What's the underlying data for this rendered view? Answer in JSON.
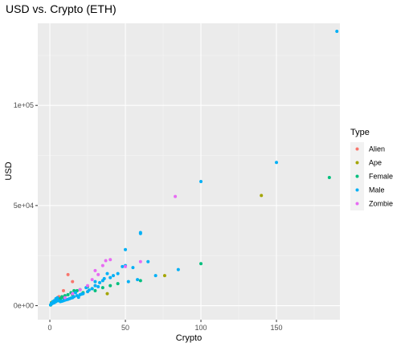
{
  "chart_data": {
    "type": "scatter",
    "title": "USD vs. Crypto (ETH)",
    "xlabel": "Crypto",
    "ylabel": "USD",
    "xlim": [
      -8,
      192
    ],
    "ylim": [
      -7000,
      141000
    ],
    "x_ticks": [
      0,
      50,
      100,
      150
    ],
    "x_tick_labels": [
      "0",
      "50",
      "100",
      "150"
    ],
    "y_ticks": [
      0,
      50000,
      100000
    ],
    "y_tick_labels": [
      "0e+00",
      "5e+04",
      "1e+05"
    ],
    "grid": true,
    "legend": {
      "title": "Type",
      "position": "right"
    },
    "series": [
      {
        "name": "Alien",
        "color": "#F8766D",
        "points": [
          [
            12,
            15500
          ],
          [
            6,
            4500
          ],
          [
            9,
            7500
          ],
          [
            2,
            1500
          ],
          [
            1,
            1000
          ],
          [
            15,
            12000
          ]
        ]
      },
      {
        "name": "Ape",
        "color": "#A3A500",
        "points": [
          [
            140,
            55000
          ],
          [
            76,
            15000
          ],
          [
            38,
            6000
          ],
          [
            1,
            1500
          ],
          [
            2,
            2000
          ],
          [
            3,
            2500
          ],
          [
            6,
            3500
          ]
        ]
      },
      {
        "name": "Female",
        "color": "#00BF7D",
        "points": [
          [
            185,
            64000
          ],
          [
            100,
            21000
          ],
          [
            60,
            12500
          ],
          [
            45,
            11000
          ],
          [
            35,
            9000
          ],
          [
            30,
            7500
          ],
          [
            25,
            9500
          ],
          [
            22,
            6500
          ],
          [
            20,
            8000
          ],
          [
            18,
            7500
          ],
          [
            16,
            7500
          ],
          [
            14,
            6500
          ],
          [
            12,
            5500
          ],
          [
            10,
            5000
          ],
          [
            9,
            4000
          ],
          [
            8,
            4500
          ],
          [
            7,
            3500
          ],
          [
            6,
            3000
          ],
          [
            5,
            2500
          ],
          [
            4,
            2200
          ],
          [
            3,
            1800
          ],
          [
            2,
            1500
          ],
          [
            1,
            800
          ],
          [
            0.5,
            300
          ],
          [
            40,
            10000
          ],
          [
            28,
            8500
          ],
          [
            15,
            5500
          ]
        ]
      },
      {
        "name": "Male",
        "color": "#00B0F6",
        "points": [
          [
            190,
            137000
          ],
          [
            150,
            71500
          ],
          [
            100,
            62000
          ],
          [
            85,
            18000
          ],
          [
            65,
            22000
          ],
          [
            60,
            36500
          ],
          [
            60,
            36000
          ],
          [
            55,
            19000
          ],
          [
            50,
            28000
          ],
          [
            50,
            20000
          ],
          [
            48,
            19500
          ],
          [
            45,
            16000
          ],
          [
            40,
            14000
          ],
          [
            38,
            16000
          ],
          [
            35,
            12500
          ],
          [
            33,
            11500
          ],
          [
            30,
            10000
          ],
          [
            28,
            8500
          ],
          [
            25,
            7000
          ],
          [
            22,
            6000
          ],
          [
            20,
            5500
          ],
          [
            18,
            5000
          ],
          [
            16,
            4500
          ],
          [
            15,
            4000
          ],
          [
            14,
            3800
          ],
          [
            13,
            3500
          ],
          [
            12,
            3200
          ],
          [
            11,
            3000
          ],
          [
            10,
            2800
          ],
          [
            9,
            2500
          ],
          [
            8,
            2200
          ],
          [
            7,
            2000
          ],
          [
            6,
            2500
          ],
          [
            5,
            3000
          ],
          [
            5,
            4000
          ],
          [
            4,
            3500
          ],
          [
            4,
            2000
          ],
          [
            3,
            1500
          ],
          [
            3,
            2500
          ],
          [
            2,
            1200
          ],
          [
            2,
            2000
          ],
          [
            1,
            800
          ],
          [
            1,
            1200
          ],
          [
            0.5,
            400
          ],
          [
            52,
            12000
          ],
          [
            42,
            15000
          ],
          [
            36,
            13500
          ],
          [
            30,
            12000
          ],
          [
            24,
            9000
          ],
          [
            17,
            6500
          ],
          [
            70,
            15000
          ],
          [
            58,
            13000
          ],
          [
            19,
            4200
          ],
          [
            21,
            5800
          ],
          [
            26,
            7800
          ],
          [
            32,
            9500
          ]
        ]
      },
      {
        "name": "Zombie",
        "color": "#E76BF3",
        "points": [
          [
            83,
            54500
          ],
          [
            60,
            22000
          ],
          [
            50,
            19500
          ],
          [
            40,
            23000
          ],
          [
            37,
            22500
          ],
          [
            35,
            20000
          ],
          [
            30,
            17500
          ],
          [
            32,
            15500
          ],
          [
            28,
            13000
          ],
          [
            25,
            10000
          ],
          [
            20,
            8000
          ],
          [
            15,
            6000
          ],
          [
            10,
            4000
          ]
        ]
      }
    ]
  }
}
